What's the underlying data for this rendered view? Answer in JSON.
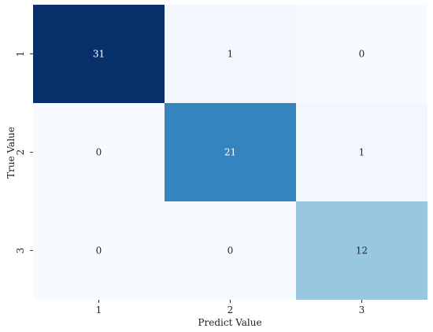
{
  "chart_data": {
    "type": "heatmap",
    "title": "",
    "xlabel": "Predict Value",
    "ylabel": "True Value",
    "x_categories": [
      "1",
      "2",
      "3"
    ],
    "y_categories": [
      "1",
      "2",
      "3"
    ],
    "values": [
      [
        31,
        1,
        0
      ],
      [
        0,
        21,
        1
      ],
      [
        0,
        0,
        12
      ]
    ],
    "colormap": "Blues",
    "colorbar": false,
    "annotations": true
  }
}
